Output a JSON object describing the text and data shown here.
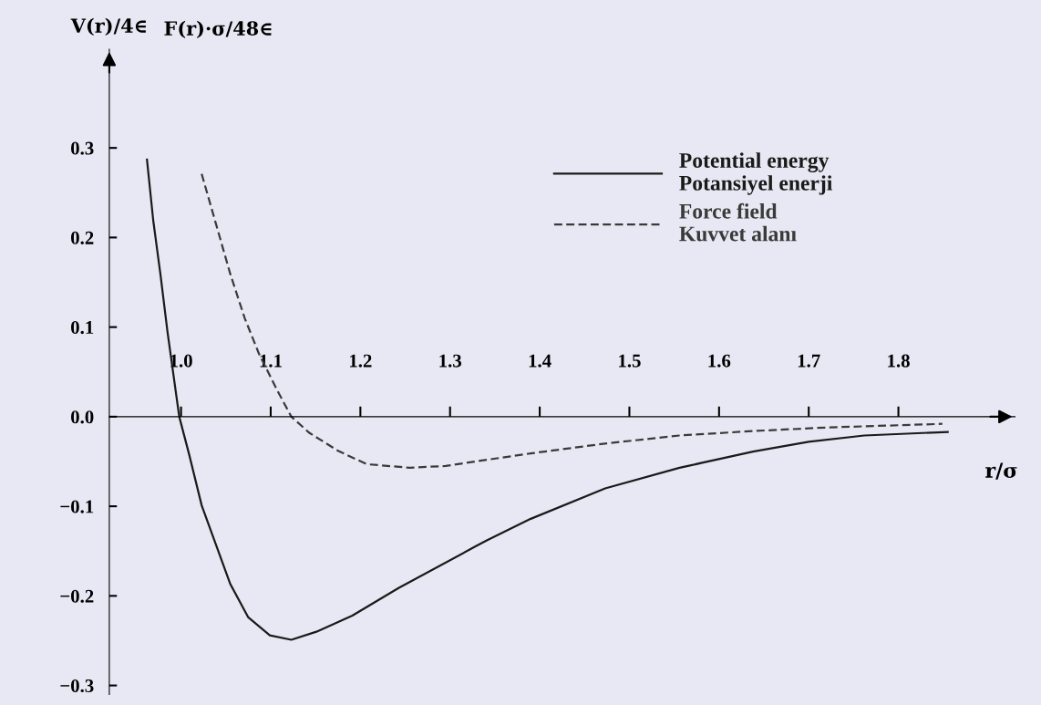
{
  "chart_data": {
    "type": "line",
    "xlabel": "r/σ",
    "ylabel": "V(r)/4∈",
    "annotations": [
      "F(r)·σ/48∈"
    ],
    "xlim": [
      0.92,
      1.93
    ],
    "ylim": [
      -0.31,
      0.41
    ],
    "xticks": [
      {
        "value": 1.0,
        "label": "1.0"
      },
      1.1,
      1.2,
      1.3,
      1.4,
      1.5,
      1.6,
      1.7,
      1.8
    ],
    "yticks": [
      {
        "value": -0.3,
        "label": "−0.3"
      },
      {
        "value": -0.2,
        "label": "−0.2"
      },
      {
        "value": -0.1,
        "label": "−0.1"
      },
      {
        "value": 0.0,
        "label": "0.0"
      },
      0.1,
      0.2,
      0.3
    ],
    "grid": false,
    "legend": "top right",
    "marker": "none",
    "series": [
      {
        "name": "Potential energy\nPotansiyel enerji",
        "color": "#1a1a1a",
        "line_style": "solid",
        "x": [
          0.962,
          0.969,
          0.977,
          0.985,
          0.998,
          1.009,
          1.023,
          1.039,
          1.055,
          1.075,
          1.099,
          1.123,
          1.151,
          1.191,
          1.243,
          1.328,
          1.341,
          1.39,
          1.473,
          1.556,
          1.638,
          1.7,
          1.762,
          1.855
        ],
        "values": [
          0.287,
          0.219,
          0.159,
          0.094,
          0.0,
          -0.042,
          -0.099,
          -0.143,
          -0.187,
          -0.224,
          -0.244,
          -0.249,
          -0.24,
          -0.222,
          -0.191,
          -0.145,
          -0.138,
          -0.114,
          -0.08,
          -0.057,
          -0.039,
          -0.028,
          -0.021,
          -0.017
        ]
      },
      {
        "name": "Force field\nKuvvet alanı",
        "color": "#3a3a3a",
        "line_style": "dashed",
        "x": [
          1.023,
          1.039,
          1.055,
          1.071,
          1.087,
          1.107,
          1.123,
          1.143,
          1.175,
          1.207,
          1.255,
          1.295,
          1.328,
          1.39,
          1.473,
          1.556,
          1.638,
          1.721,
          1.849
        ],
        "values": [
          0.271,
          0.215,
          0.159,
          0.11,
          0.07,
          0.03,
          0.0,
          -0.018,
          -0.038,
          -0.053,
          -0.057,
          -0.055,
          -0.05,
          -0.041,
          -0.03,
          -0.021,
          -0.016,
          -0.012,
          -0.008
        ]
      }
    ]
  }
}
